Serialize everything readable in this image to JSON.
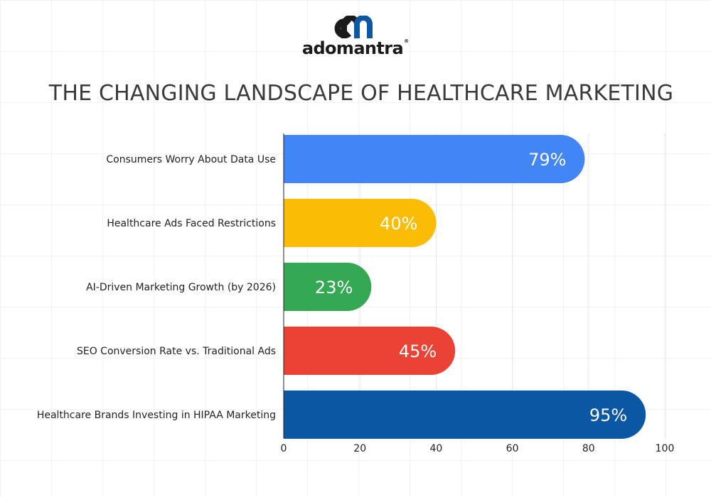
{
  "brand": {
    "name": "adomantra",
    "registered_mark": "®",
    "logo_glyph": "cn-monogram-icon"
  },
  "colors": {
    "grid": "#e6e6e6",
    "axis": "#222222"
  },
  "chart_data": {
    "type": "bar",
    "orientation": "horizontal",
    "title": "THE CHANGING LANDSCAPE OF HEALTHCARE MARKETING",
    "categories": [
      "Consumers Worry About Data Use",
      "Healthcare Ads Faced Restrictions",
      "AI-Driven Marketing Growth (by 2026)",
      "SEO Conversion Rate vs. Traditional Ads",
      "Healthcare Brands Investing in HIPAA Marketing"
    ],
    "values": [
      79,
      40,
      23,
      45,
      95
    ],
    "value_labels": [
      "79%",
      "40%",
      "23%",
      "45%",
      "95%"
    ],
    "bar_colors": [
      "#4285f4",
      "#fbbc05",
      "#34a853",
      "#ea4335",
      "#0b57a4"
    ],
    "xlim": [
      0,
      100
    ],
    "xticks": [
      0,
      20,
      40,
      60,
      80,
      100
    ],
    "xlabel": "",
    "ylabel": "",
    "grid": true,
    "legend": "none"
  }
}
